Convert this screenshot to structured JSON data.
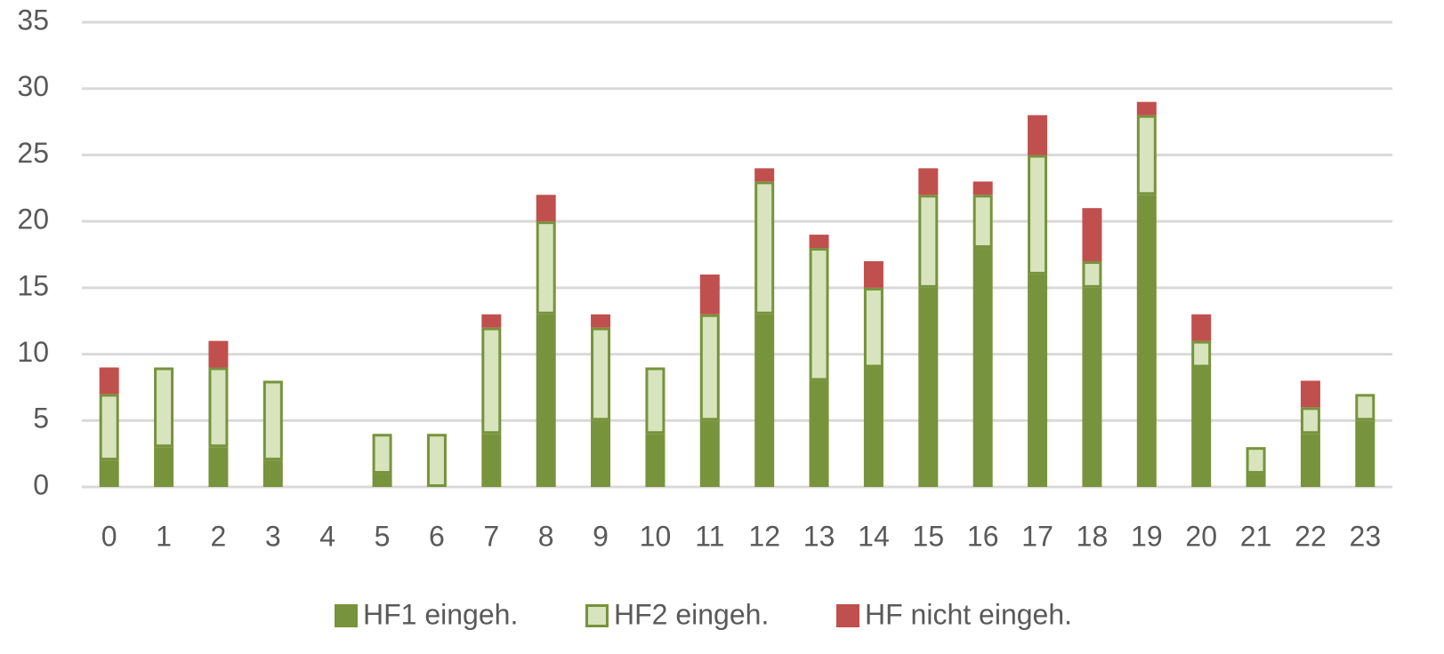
{
  "chart_data": {
    "type": "stacked_bar",
    "categories": [
      "0",
      "1",
      "2",
      "3",
      "4",
      "5",
      "6",
      "7",
      "8",
      "9",
      "10",
      "11",
      "12",
      "13",
      "14",
      "15",
      "16",
      "17",
      "18",
      "19",
      "20",
      "21",
      "22",
      "23"
    ],
    "series": [
      {
        "name": "HF1 eingeh.",
        "color": "#77933c",
        "values": [
          2,
          3,
          3,
          2,
          0,
          1,
          0,
          4,
          13,
          5,
          4,
          5,
          13,
          8,
          9,
          15,
          18,
          16,
          15,
          22,
          9,
          1,
          4,
          5
        ]
      },
      {
        "name": "HF2 eingeh.",
        "color": "#d7e4bd",
        "edgecolor": "#77933c",
        "values": [
          5,
          6,
          6,
          6,
          0,
          3,
          4,
          8,
          7,
          7,
          5,
          8,
          10,
          10,
          6,
          7,
          4,
          9,
          2,
          6,
          2,
          2,
          2,
          2
        ]
      },
      {
        "name": "HF nicht eingeh.",
        "color": "#c0504d",
        "values": [
          2,
          0,
          2,
          0,
          0,
          0,
          0,
          1,
          2,
          1,
          0,
          3,
          1,
          1,
          2,
          2,
          1,
          3,
          4,
          1,
          2,
          0,
          2,
          0
        ]
      }
    ],
    "ylim": [
      0,
      35
    ],
    "yticks": [
      0,
      5,
      10,
      15,
      20,
      25,
      30,
      35
    ],
    "grid": true,
    "legend": "bottom"
  }
}
